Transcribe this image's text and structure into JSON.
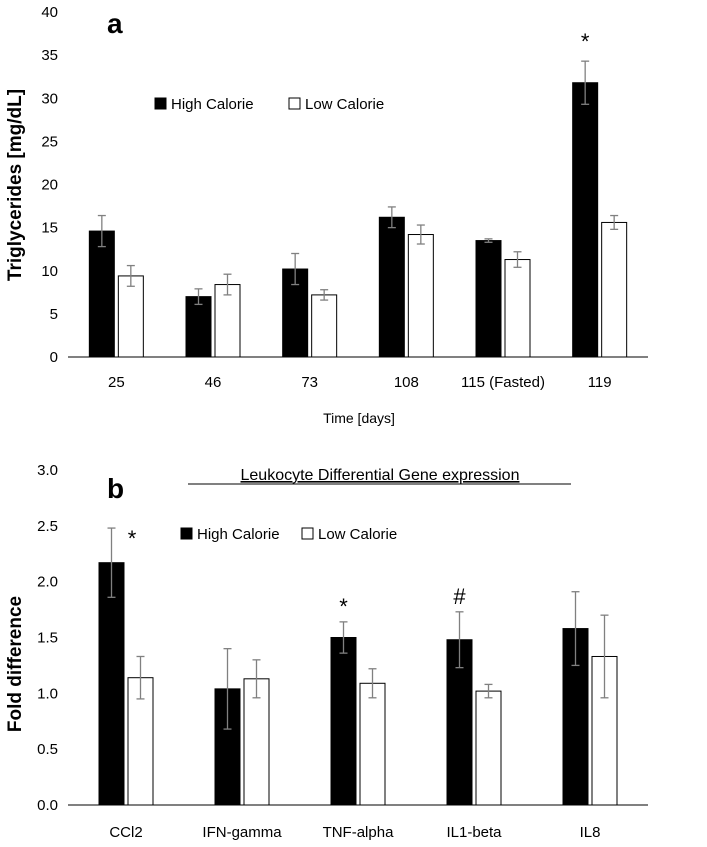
{
  "chart_data": [
    {
      "type": "bar",
      "panel_label": "a",
      "title": "",
      "xlabel": "Time [days]",
      "ylabel": "Triglycerides [mg/dL]",
      "ylim": [
        0,
        40
      ],
      "yticks": [
        0,
        5,
        10,
        15,
        20,
        25,
        30,
        35,
        40
      ],
      "categories": [
        "25",
        "46",
        "73",
        "108",
        "115 (Fasted)",
        "119"
      ],
      "series": [
        {
          "name": "High Calorie",
          "fill": "#000000",
          "values": [
            14.6,
            7.0,
            10.2,
            16.2,
            13.5,
            31.8
          ],
          "errors": [
            1.8,
            0.9,
            1.8,
            1.2,
            0.2,
            2.5
          ]
        },
        {
          "name": "Low Calorie",
          "fill": "#ffffff",
          "values": [
            9.4,
            8.4,
            7.2,
            14.2,
            11.3,
            15.6
          ],
          "errors": [
            1.2,
            1.2,
            0.6,
            1.1,
            0.9,
            0.8
          ]
        }
      ],
      "annotations": [
        {
          "text": "*",
          "category_index": 5
        }
      ]
    },
    {
      "type": "bar",
      "panel_label": "b",
      "title": "Leukocyte Differential Gene expression",
      "xlabel": "",
      "ylabel": "Fold difference",
      "ylim": [
        0,
        3.0
      ],
      "yticks": [
        "0.0",
        "0.5",
        "1.0",
        "1.5",
        "2.0",
        "2.5",
        "3.0"
      ],
      "categories": [
        "CCl2",
        "IFN-gamma",
        "TNF-alpha",
        "IL1-beta",
        "IL8"
      ],
      "series": [
        {
          "name": "High Calorie",
          "fill": "#000000",
          "values": [
            2.17,
            1.04,
            1.5,
            1.48,
            1.58
          ],
          "errors": [
            0.31,
            0.36,
            0.14,
            0.25,
            0.33
          ]
        },
        {
          "name": "Low Calorie",
          "fill": "#ffffff",
          "values": [
            1.14,
            1.13,
            1.09,
            1.02,
            1.33
          ],
          "errors": [
            0.19,
            0.17,
            0.13,
            0.06,
            0.37
          ]
        }
      ],
      "annotations": [
        {
          "text": "*",
          "category_index": 0
        },
        {
          "text": "*",
          "category_index": 2
        },
        {
          "text": "#",
          "category_index": 3
        }
      ]
    }
  ],
  "colors": {
    "bar_high": "#000000",
    "bar_low": "#ffffff",
    "error_bar": "#808080",
    "axis": "#000000"
  }
}
